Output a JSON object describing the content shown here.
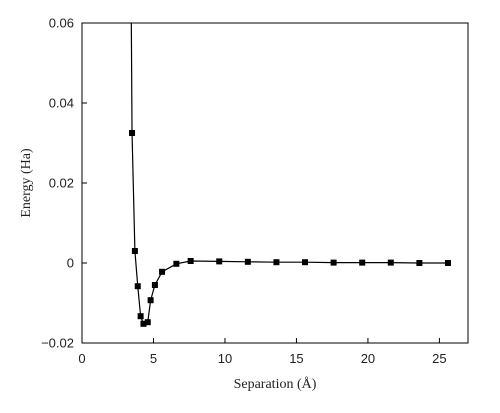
{
  "chart_data": {
    "type": "line",
    "title": "",
    "xlabel": "Separation (Å)",
    "ylabel": "Energy (Ha)",
    "xlim": [
      0,
      27
    ],
    "ylim": [
      -0.02,
      0.06
    ],
    "xticks": [
      0,
      5,
      10,
      15,
      20,
      25
    ],
    "yticks": [
      -0.02,
      0,
      0.02,
      0.04,
      0.06
    ],
    "xtick_labels": [
      "0",
      "5",
      "10",
      "15",
      "20",
      "25"
    ],
    "ytick_labels": [
      "−0.02",
      "0",
      "0.02",
      "0.04",
      "0.06"
    ],
    "grid": false,
    "line_color": "#000000",
    "marker": "square",
    "series": [
      {
        "name": "",
        "x": [
          3.5,
          3.7,
          3.9,
          4.1,
          4.3,
          4.6,
          4.8,
          5.1,
          5.6,
          6.6,
          7.6,
          9.6,
          11.6,
          13.6,
          15.6,
          17.6,
          19.6,
          21.6,
          23.6,
          25.6
        ],
        "y": [
          0.0325,
          0.003,
          -0.0058,
          -0.0133,
          -0.0152,
          -0.0148,
          -0.0093,
          -0.0055,
          -0.0022,
          -0.0002,
          0.0005,
          0.0004,
          0.0003,
          0.0002,
          0.0002,
          0.0001,
          0.0001,
          0.0001,
          0.0,
          0.0
        ]
      }
    ],
    "curve_extension": {
      "x": [
        3.5,
        3.45
      ],
      "y": [
        0.0325,
        0.06
      ]
    }
  }
}
